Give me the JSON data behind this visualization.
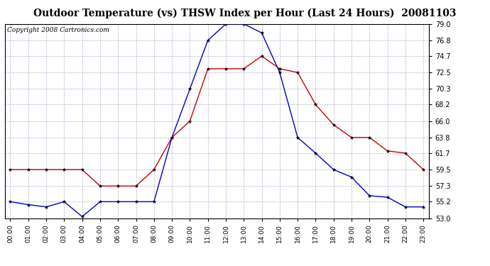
{
  "title": "Outdoor Temperature (vs) THSW Index per Hour (Last 24 Hours)  20081103",
  "copyright": "Copyright 2008 Cartronics.com",
  "hours": [
    "00:00",
    "01:00",
    "02:00",
    "03:00",
    "04:00",
    "05:00",
    "06:00",
    "07:00",
    "08:00",
    "09:00",
    "10:00",
    "11:00",
    "12:00",
    "13:00",
    "14:00",
    "15:00",
    "16:00",
    "17:00",
    "18:00",
    "19:00",
    "20:00",
    "21:00",
    "22:00",
    "23:00"
  ],
  "blue_temp": [
    55.2,
    54.8,
    54.5,
    55.2,
    53.2,
    55.2,
    55.2,
    55.2,
    55.2,
    63.8,
    70.3,
    76.8,
    79.0,
    79.0,
    77.8,
    72.5,
    63.8,
    61.7,
    59.5,
    58.5,
    56.0,
    55.8,
    54.5,
    54.5
  ],
  "red_thsw": [
    59.5,
    59.5,
    59.5,
    59.5,
    59.5,
    57.3,
    57.3,
    57.3,
    59.5,
    63.8,
    66.0,
    73.0,
    73.0,
    73.0,
    74.7,
    73.0,
    72.5,
    68.2,
    65.5,
    63.8,
    63.8,
    62.0,
    61.7,
    59.5
  ],
  "ylim": [
    53.0,
    79.0
  ],
  "yticks": [
    53.0,
    55.2,
    57.3,
    59.5,
    61.7,
    63.8,
    66.0,
    68.2,
    70.3,
    72.5,
    74.7,
    76.8,
    79.0
  ],
  "blue_color": "#0000CC",
  "red_color": "#CC0000",
  "bg_color": "#FFFFFF",
  "plot_bg": "#FFFFFF",
  "grid_color": "#AAAACC",
  "title_fontsize": 10,
  "copyright_fontsize": 6.5,
  "marker_size": 3.5
}
